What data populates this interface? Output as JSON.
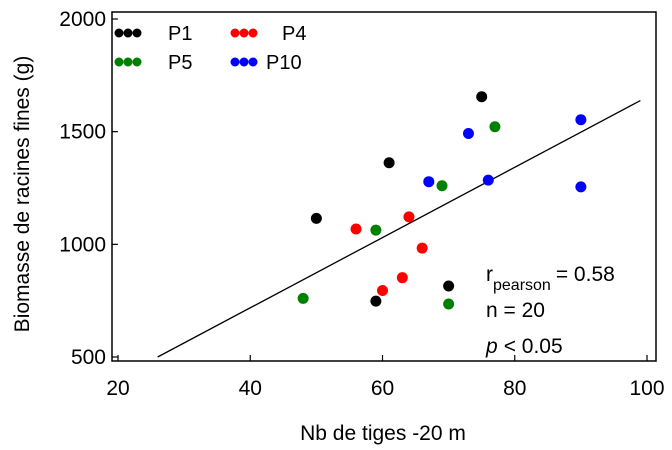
{
  "chart_data": {
    "type": "scatter",
    "xlabel": "Nb de tiges -20 m",
    "ylabel": "Biomasse de racines fines (g)",
    "xlim": [
      20,
      100
    ],
    "ylim": [
      450,
      2000
    ],
    "x_ticks": [
      20,
      40,
      60,
      80,
      100
    ],
    "y_ticks": [
      500,
      1000,
      1500,
      2000
    ],
    "grid": false,
    "legend_position": "top-left",
    "series": [
      {
        "name": "P1",
        "color": "#000000",
        "points": [
          [
            50,
            1115
          ],
          [
            59,
            748
          ],
          [
            61,
            1362
          ],
          [
            70,
            815
          ],
          [
            75,
            1655
          ]
        ]
      },
      {
        "name": "P4",
        "color": "#ff0000",
        "points": [
          [
            56,
            1068
          ],
          [
            60,
            795
          ],
          [
            63,
            852
          ],
          [
            64,
            1122
          ],
          [
            66,
            983
          ]
        ]
      },
      {
        "name": "P5",
        "color": "#008000",
        "points": [
          [
            48,
            760
          ],
          [
            59,
            1063
          ],
          [
            69,
            1260
          ],
          [
            70,
            735
          ],
          [
            77,
            1522
          ]
        ]
      },
      {
        "name": "P10",
        "color": "#0000ff",
        "points": [
          [
            67,
            1278
          ],
          [
            73,
            1492
          ],
          [
            76,
            1285
          ],
          [
            90,
            1553
          ],
          [
            90,
            1255
          ]
        ]
      }
    ],
    "regression_line": {
      "x": [
        26,
        99
      ],
      "y": [
        500,
        1638
      ]
    },
    "annotation": {
      "r_symbol": "r",
      "r_subscript": "pearson",
      "r_value": "= 0.58",
      "n_text": "n = 20",
      "p_symbol": "p",
      "p_rest": "< 0.05"
    }
  }
}
